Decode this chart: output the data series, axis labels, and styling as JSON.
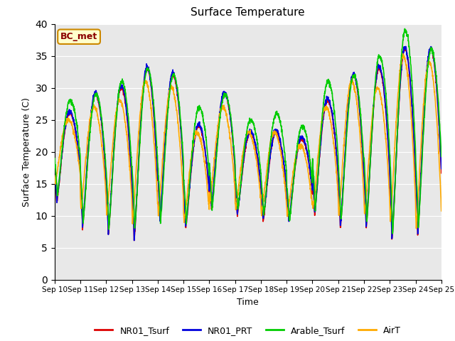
{
  "title": "Surface Temperature",
  "ylabel": "Surface Temperature (C)",
  "xlabel": "Time",
  "annotation": "BC_met",
  "ylim": [
    0,
    40
  ],
  "background_color": "#e8e8e8",
  "line_colors": {
    "NR01_Tsurf": "#dd0000",
    "NR01_PRT": "#0000dd",
    "Arable_Tsurf": "#00cc00",
    "AirT": "#ffaa00"
  },
  "x_tick_labels": [
    "Sep 10",
    "Sep 11",
    "Sep 12",
    "Sep 13",
    "Sep 14",
    "Sep 15",
    "Sep 16",
    "Sep 17",
    "Sep 18",
    "Sep 19",
    "Sep 20",
    "Sep 21",
    "Sep 22",
    "Sep 23",
    "Sep 24",
    "Sep 25"
  ],
  "n_days": 15,
  "pts_per_day": 144,
  "day_maxes_NR01": [
    26,
    29,
    30,
    33,
    32,
    24,
    29,
    23,
    23,
    22,
    28,
    32,
    33,
    36,
    36
  ],
  "day_mins_NR01": [
    12,
    8,
    7,
    6,
    9,
    8,
    11,
    10,
    9,
    9,
    10,
    8,
    8,
    6,
    7
  ],
  "day_maxes_arable": [
    28,
    29,
    31,
    33,
    32,
    27,
    29,
    25,
    26,
    24,
    31,
    32,
    35,
    39,
    36
  ],
  "day_mins_arable": [
    13,
    9,
    8,
    8,
    9,
    9,
    11,
    11,
    10,
    9,
    11,
    9,
    9,
    7,
    8
  ],
  "day_maxes_airT": [
    25,
    27,
    28,
    31,
    30,
    23,
    27,
    23,
    23,
    21,
    27,
    31,
    30,
    35,
    34
  ],
  "day_mins_airT": [
    15,
    11,
    10,
    9,
    10,
    9,
    12,
    11,
    10,
    10,
    11,
    10,
    10,
    9,
    8
  ],
  "figsize": [
    6.4,
    4.8
  ],
  "dpi": 100
}
